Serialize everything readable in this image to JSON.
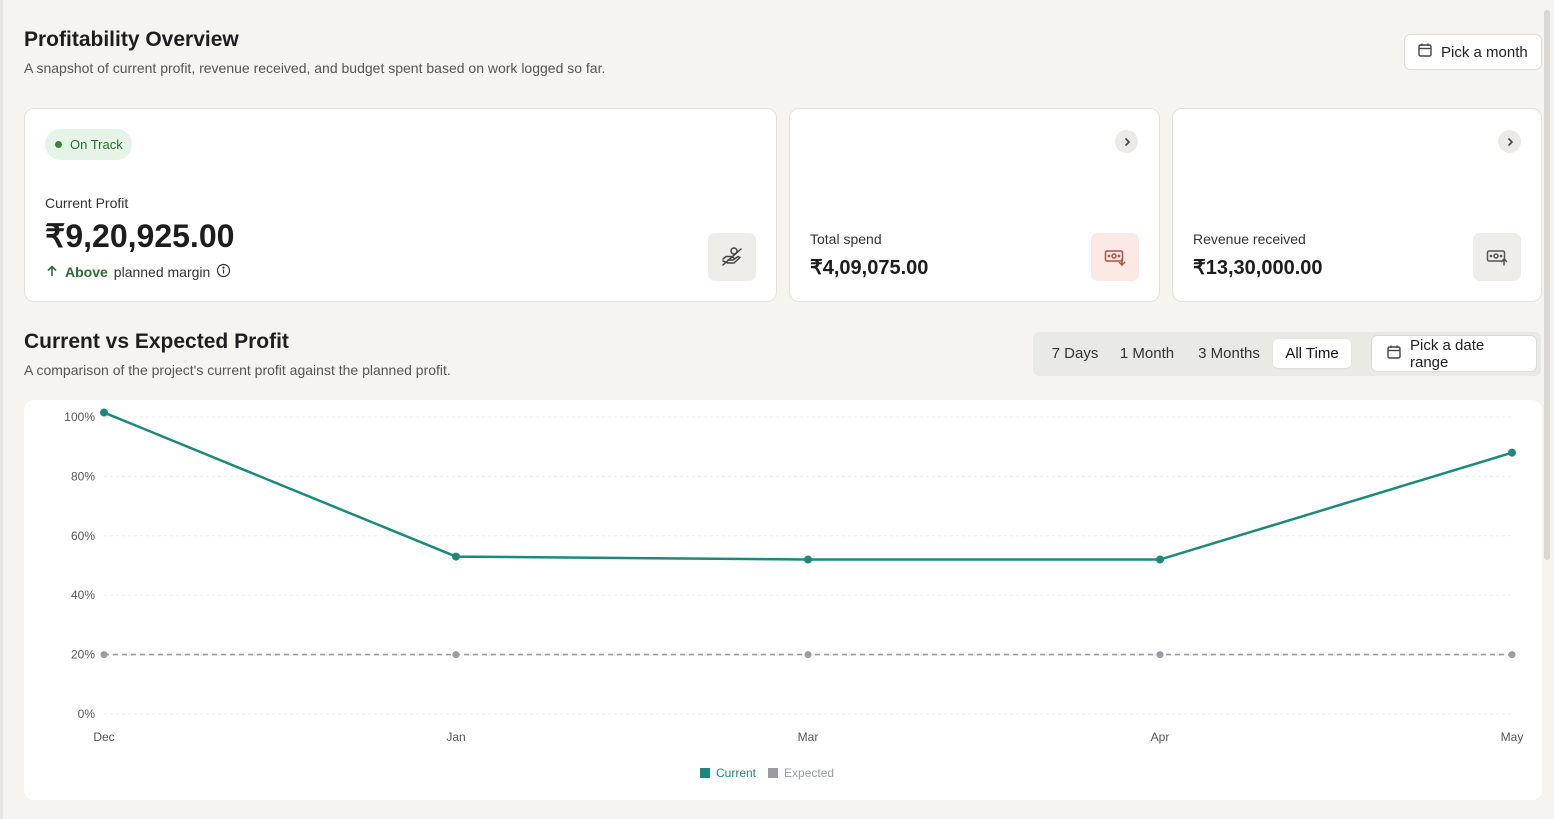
{
  "header": {
    "title": "Profitability Overview",
    "subtitle": "A snapshot of current profit, revenue received, and budget spent based on work logged so far.",
    "pick_month_label": "Pick a month"
  },
  "profit_card": {
    "status": "On Track",
    "label": "Current Profit",
    "value": "₹9,20,925.00",
    "margin_above": "Above",
    "margin_rest": "planned margin",
    "icon": "hand-coins-icon"
  },
  "spend_card": {
    "label": "Total spend",
    "value": "₹4,09,075.00",
    "icon": "money-down-icon"
  },
  "revenue_card": {
    "label": "Revenue received",
    "value": "₹13,30,000.00",
    "icon": "money-up-icon"
  },
  "chart_section": {
    "title": "Current vs Expected Profit",
    "subtitle": "A comparison of the project's current profit against the planned profit.",
    "ranges": [
      "7 Days",
      "1 Month",
      "3 Months",
      "All Time"
    ],
    "active_range": "All Time",
    "date_range_label": "Pick a date range"
  },
  "colors": {
    "current": "#1a8a7c",
    "expected": "#9a9ca3",
    "positive": "#2a6b33",
    "spend_tile": "#fbe9e5",
    "neutral_tile": "#eeede9"
  },
  "chart_data": {
    "type": "line",
    "categories": [
      "Dec",
      "Jan",
      "Mar",
      "Apr",
      "May"
    ],
    "series": [
      {
        "name": "Current",
        "values": [
          101.5,
          53,
          52,
          52,
          88
        ]
      },
      {
        "name": "Expected",
        "values": [
          20,
          20,
          20,
          20,
          20
        ]
      }
    ],
    "y_ticks": [
      "100%",
      "80%",
      "60%",
      "40%",
      "20%",
      "0%"
    ],
    "ylim": [
      0,
      100
    ],
    "grid": true,
    "legend_position": "bottom-center"
  }
}
